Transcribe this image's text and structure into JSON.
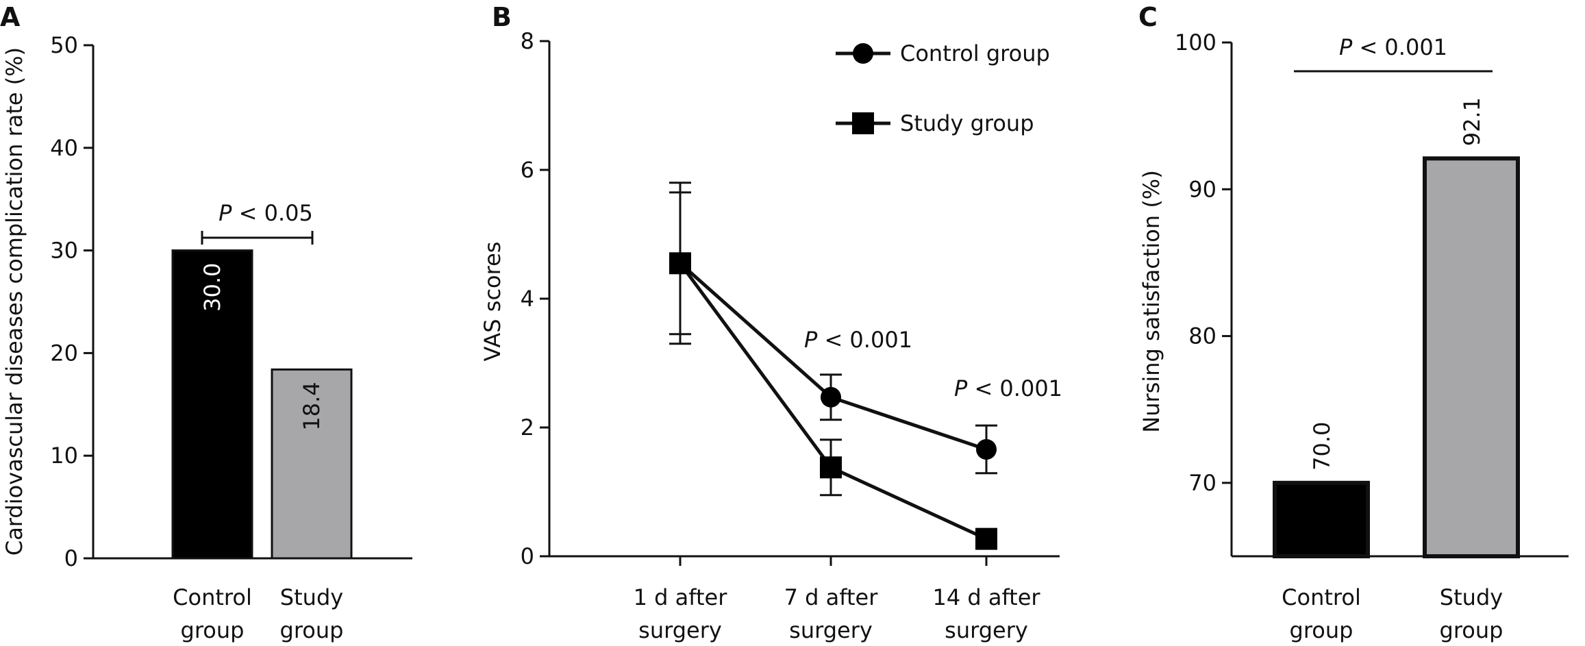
{
  "panels": [
    "A",
    "B",
    "C"
  ],
  "chart_data": [
    {
      "panel": "A",
      "type": "bar",
      "categories": [
        [
          "Control",
          "group"
        ],
        [
          "Study",
          "group"
        ]
      ],
      "values": [
        30.0,
        18.4
      ],
      "value_labels": [
        "30.0",
        "18.4"
      ],
      "colors": [
        "#000000",
        "#a7a7a9"
      ],
      "ylabel": "Cardiovascular diseases complication rate (%)",
      "ylim": [
        0,
        50
      ],
      "yticks": [
        0,
        10,
        20,
        30,
        40,
        50
      ],
      "annotation": {
        "p_symbol": "P",
        "p_text": " < 0.05"
      },
      "grid": false,
      "legend": "none"
    },
    {
      "panel": "B",
      "type": "line",
      "categories": [
        [
          "1 d after",
          "surgery"
        ],
        [
          "7 d after",
          "surgery"
        ],
        [
          "14 d after",
          "surgery"
        ]
      ],
      "ylabel": "VAS scores",
      "ylim": [
        0,
        8
      ],
      "yticks": [
        0,
        2,
        4,
        6,
        8
      ],
      "series": [
        {
          "name": "Control group",
          "marker": "circle",
          "values": [
            4.55,
            2.47,
            1.66
          ],
          "errors": [
            1.1,
            0.35,
            0.37
          ]
        },
        {
          "name": "Study group",
          "marker": "square",
          "values": [
            4.55,
            1.38,
            0.27
          ],
          "errors": [
            1.25,
            0.43,
            0.0
          ]
        }
      ],
      "annotations": [
        {
          "category_index": 1,
          "p_symbol": "P",
          "p_text": " < 0.001"
        },
        {
          "category_index": 2,
          "p_symbol": "P",
          "p_text": " < 0.001"
        }
      ],
      "grid": false,
      "legend": "top-right"
    },
    {
      "panel": "C",
      "type": "bar",
      "categories": [
        [
          "Control",
          "group"
        ],
        [
          "Study",
          "group"
        ]
      ],
      "values": [
        70.0,
        92.1
      ],
      "value_labels": [
        "70.0",
        "92.1"
      ],
      "colors": [
        "#000000",
        "#a7a7a9"
      ],
      "ylabel": "Nursing satisfaction (%)",
      "ylim": [
        65,
        100
      ],
      "yticks": [
        70,
        80,
        90,
        100
      ],
      "annotation": {
        "p_symbol": "P",
        "p_text": " < 0.001"
      },
      "grid": false,
      "legend": "none"
    }
  ]
}
